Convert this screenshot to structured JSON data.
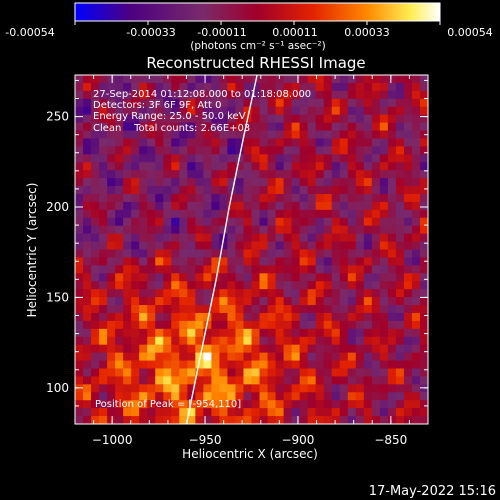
{
  "colorbar": {
    "ticks": [
      "-0.00054",
      "-0.00033",
      "-0.00011",
      "0.00011",
      "0.00033",
      "0.00054"
    ],
    "units": "(photons cm⁻² s⁻¹ asec⁻²)",
    "colors": [
      "#0000ff",
      "#4b0082",
      "#7a2a6a",
      "#a0002a",
      "#e32200",
      "#ff8800",
      "#ffee55",
      "#ffffff"
    ]
  },
  "footer": {
    "timestamp": "17-May-2022 15:16"
  },
  "annotations": {
    "time_range": "27-Sep-2014 01:12:08.000 to 01:18:08.000",
    "detectors": "Detectors: 3F 6F 9F, Att 0",
    "energy": "Energy Range: 25.0 - 50.0 keV",
    "clean": "Clean    Total counts: 2.66E+03",
    "peak": "Position of Peak = [-954,110]"
  },
  "chart_data": {
    "type": "heatmap",
    "title": "Reconstructed RHESSI Image",
    "xlabel": "Heliocentric X (arcsec)",
    "ylabel": "Heliocentric Y (arcsec)",
    "xlim": [
      -1020,
      -830
    ],
    "ylim": [
      80,
      273
    ],
    "xticks": [
      -1000,
      -950,
      -900,
      -850
    ],
    "xtick_labels": [
      "−1000",
      "−950",
      "−900",
      "−850"
    ],
    "yticks": [
      100,
      150,
      200,
      250
    ],
    "ytick_labels": [
      "100",
      "150",
      "200",
      "250"
    ],
    "value_range": [
      -0.00054,
      0.00054
    ],
    "peak": [
      -954,
      110
    ],
    "limb_curve": [
      [
        -960,
        80
      ],
      [
        -952,
        120
      ],
      [
        -944,
        160
      ],
      [
        -937,
        200
      ],
      [
        -929,
        240
      ],
      [
        -922,
        273
      ]
    ]
  }
}
